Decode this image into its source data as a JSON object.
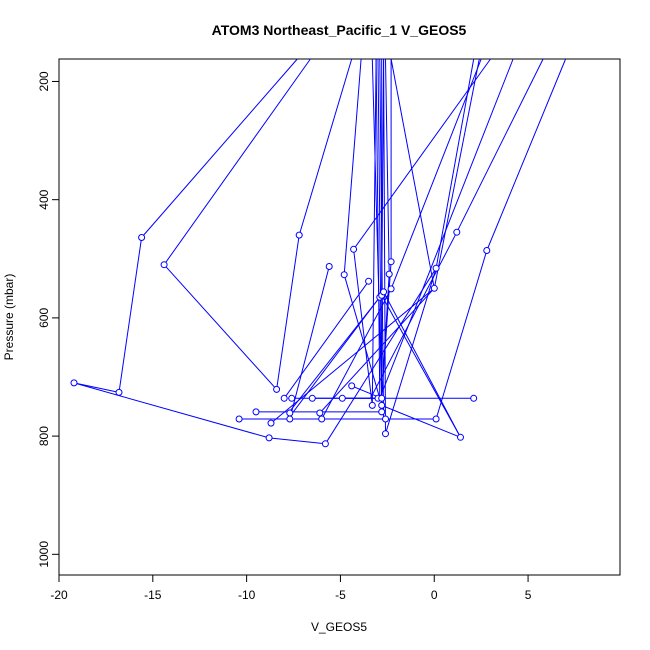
{
  "chart_data": {
    "type": "line",
    "title": "ATOM3 Northeast_Pacific_1 V_GEOS5",
    "xlabel": "V_GEOS5",
    "ylabel": "Pressure (mbar)",
    "xlim": [
      -20.0,
      9.9
    ],
    "ylim": [
      1035,
      162
    ],
    "y_reversed": true,
    "x_ticks": [
      -20,
      -15,
      -10,
      -5,
      0,
      5
    ],
    "x_tick_labels": [
      "-20",
      "-15",
      "-10",
      "-5",
      "0",
      "5"
    ],
    "y_ticks": [
      200,
      400,
      600,
      800,
      1000
    ],
    "y_tick_labels": [
      "200",
      "400",
      "600",
      "800",
      "1000"
    ],
    "grid": false,
    "legend": "none",
    "marker": "open-circle",
    "color": "#0000ff",
    "segments": [
      {
        "x1": -15.6,
        "y1": 464,
        "x2": -16.8,
        "y2": 726
      },
      {
        "x1": -16.8,
        "y1": 726,
        "x2": -19.2,
        "y2": 710
      },
      {
        "x1": -19.2,
        "y1": 710,
        "x2": -8.8,
        "y2": 803
      },
      {
        "x1": -8.8,
        "y1": 803,
        "x2": -5.8,
        "y2": 813
      },
      {
        "x1": -15.6,
        "y1": 464,
        "x2": -7.3,
        "y2": 162
      },
      {
        "x1": -14.4,
        "y1": 510,
        "x2": -6.6,
        "y2": 162
      },
      {
        "x1": -14.4,
        "y1": 510,
        "x2": -8.4,
        "y2": 721
      },
      {
        "x1": -8.4,
        "y1": 721,
        "x2": -7.2,
        "y2": 460
      },
      {
        "x1": -7.2,
        "y1": 460,
        "x2": -4.4,
        "y2": 162
      },
      {
        "x1": -10.4,
        "y1": 771,
        "x2": -2.6,
        "y2": 771
      },
      {
        "x1": -2.6,
        "y1": 771,
        "x2": 0.1,
        "y2": 771
      },
      {
        "x1": -9.5,
        "y1": 759,
        "x2": -2.8,
        "y2": 759
      },
      {
        "x1": -7.6,
        "y1": 736,
        "x2": 2.1,
        "y2": 736
      },
      {
        "x1": -6.5,
        "y1": 736,
        "x2": -2.9,
        "y2": 736
      },
      {
        "x1": -4.9,
        "y1": 736,
        "x2": -2.7,
        "y2": 736
      },
      {
        "x1": -7.7,
        "y1": 771,
        "x2": -5.6,
        "y2": 513
      },
      {
        "x1": -8.0,
        "y1": 736,
        "x2": -3.5,
        "y2": 538
      },
      {
        "x1": -7.7,
        "y1": 758,
        "x2": -2.9,
        "y2": 565
      },
      {
        "x1": -7.7,
        "y1": 767,
        "x2": -2.7,
        "y2": 556
      },
      {
        "x1": -8.7,
        "y1": 778,
        "x2": 0.0,
        "y2": 550
      },
      {
        "x1": -6.1,
        "y1": 761,
        "x2": 0.0,
        "y2": 550
      },
      {
        "x1": -5.8,
        "y1": 813,
        "x2": 0.1,
        "y2": 516
      },
      {
        "x1": -6.0,
        "y1": 771,
        "x2": -2.3,
        "y2": 551
      },
      {
        "x1": -4.3,
        "y1": 484,
        "x2": 3.0,
        "y2": 162
      },
      {
        "x1": -4.3,
        "y1": 484,
        "x2": -3.3,
        "y2": 748
      },
      {
        "x1": -4.8,
        "y1": 527,
        "x2": -3.9,
        "y2": 162
      },
      {
        "x1": -4.8,
        "y1": 527,
        "x2": -2.9,
        "y2": 736
      },
      {
        "x1": -4.4,
        "y1": 715,
        "x2": -2.8,
        "y2": 736
      },
      {
        "x1": -3.3,
        "y1": 748,
        "x2": -3.1,
        "y2": 162
      },
      {
        "x1": -2.9,
        "y1": 736,
        "x2": -3.1,
        "y2": 162
      },
      {
        "x1": -2.8,
        "y1": 736,
        "x2": -3.3,
        "y2": 162
      },
      {
        "x1": -2.8,
        "y1": 748,
        "x2": -3.0,
        "y2": 162
      },
      {
        "x1": -2.8,
        "y1": 748,
        "x2": 1.4,
        "y2": 802
      },
      {
        "x1": -2.8,
        "y1": 759,
        "x2": -2.8,
        "y2": 162
      },
      {
        "x1": -2.7,
        "y1": 771,
        "x2": -2.9,
        "y2": 162
      },
      {
        "x1": -2.6,
        "y1": 796,
        "x2": -2.7,
        "y2": 162
      },
      {
        "x1": -2.8,
        "y1": 562,
        "x2": -2.7,
        "y2": 162
      },
      {
        "x1": -2.8,
        "y1": 562,
        "x2": 1.4,
        "y2": 802
      },
      {
        "x1": -2.7,
        "y1": 556,
        "x2": 1.4,
        "y2": 802
      },
      {
        "x1": -2.4,
        "y1": 526,
        "x2": -2.6,
        "y2": 162
      },
      {
        "x1": -2.4,
        "y1": 526,
        "x2": -2.8,
        "y2": 736
      },
      {
        "x1": -2.3,
        "y1": 505,
        "x2": -2.3,
        "y2": 162
      },
      {
        "x1": -2.3,
        "y1": 505,
        "x2": -2.8,
        "y2": 736
      },
      {
        "x1": -2.3,
        "y1": 551,
        "x2": 2.5,
        "y2": 162
      },
      {
        "x1": 0.0,
        "y1": 550,
        "x2": -2.3,
        "y2": 162
      },
      {
        "x1": 0.0,
        "y1": 550,
        "x2": 2.4,
        "y2": 162
      },
      {
        "x1": 0.1,
        "y1": 516,
        "x2": 2.1,
        "y2": 162
      },
      {
        "x1": 0.1,
        "y1": 516,
        "x2": -2.6,
        "y2": 796
      },
      {
        "x1": 0.1,
        "y1": 771,
        "x2": 2.8,
        "y2": 486
      },
      {
        "x1": 2.8,
        "y1": 486,
        "x2": 7.0,
        "y2": 162
      },
      {
        "x1": 1.2,
        "y1": 455,
        "x2": 5.8,
        "y2": 162
      },
      {
        "x1": 1.2,
        "y1": 455,
        "x2": -3.4,
        "y2": 736
      },
      {
        "x1": -2.9,
        "y1": 736,
        "x2": 4.2,
        "y2": 162
      }
    ],
    "points": [
      {
        "x": -15.6,
        "y": 464
      },
      {
        "x": -14.4,
        "y": 510
      },
      {
        "x": -19.2,
        "y": 710
      },
      {
        "x": -16.8,
        "y": 726
      },
      {
        "x": -8.4,
        "y": 721
      },
      {
        "x": -7.2,
        "y": 460
      },
      {
        "x": -5.6,
        "y": 513
      },
      {
        "x": -4.3,
        "y": 484
      },
      {
        "x": -4.8,
        "y": 527
      },
      {
        "x": -3.5,
        "y": 538
      },
      {
        "x": -2.4,
        "y": 526
      },
      {
        "x": -2.3,
        "y": 505
      },
      {
        "x": -2.9,
        "y": 565
      },
      {
        "x": -2.8,
        "y": 562
      },
      {
        "x": -2.7,
        "y": 556
      },
      {
        "x": -2.3,
        "y": 551
      },
      {
        "x": 0.0,
        "y": 550
      },
      {
        "x": 0.1,
        "y": 516
      },
      {
        "x": 1.2,
        "y": 455
      },
      {
        "x": 2.8,
        "y": 486
      },
      {
        "x": -4.4,
        "y": 715
      },
      {
        "x": -8.0,
        "y": 736
      },
      {
        "x": -7.6,
        "y": 736
      },
      {
        "x": -6.5,
        "y": 736
      },
      {
        "x": -4.9,
        "y": 736
      },
      {
        "x": -3.0,
        "y": 736
      },
      {
        "x": -2.8,
        "y": 736
      },
      {
        "x": 2.1,
        "y": 736
      },
      {
        "x": -3.3,
        "y": 748
      },
      {
        "x": -2.8,
        "y": 748
      },
      {
        "x": -9.5,
        "y": 759
      },
      {
        "x": -7.7,
        "y": 761
      },
      {
        "x": -6.1,
        "y": 761
      },
      {
        "x": -2.8,
        "y": 759
      },
      {
        "x": -10.4,
        "y": 771
      },
      {
        "x": -7.7,
        "y": 771
      },
      {
        "x": -6.0,
        "y": 771
      },
      {
        "x": -2.6,
        "y": 771
      },
      {
        "x": 0.1,
        "y": 771
      },
      {
        "x": -8.7,
        "y": 778
      },
      {
        "x": -2.6,
        "y": 796
      },
      {
        "x": 1.4,
        "y": 802
      },
      {
        "x": -8.8,
        "y": 803
      },
      {
        "x": -5.8,
        "y": 813
      }
    ]
  }
}
